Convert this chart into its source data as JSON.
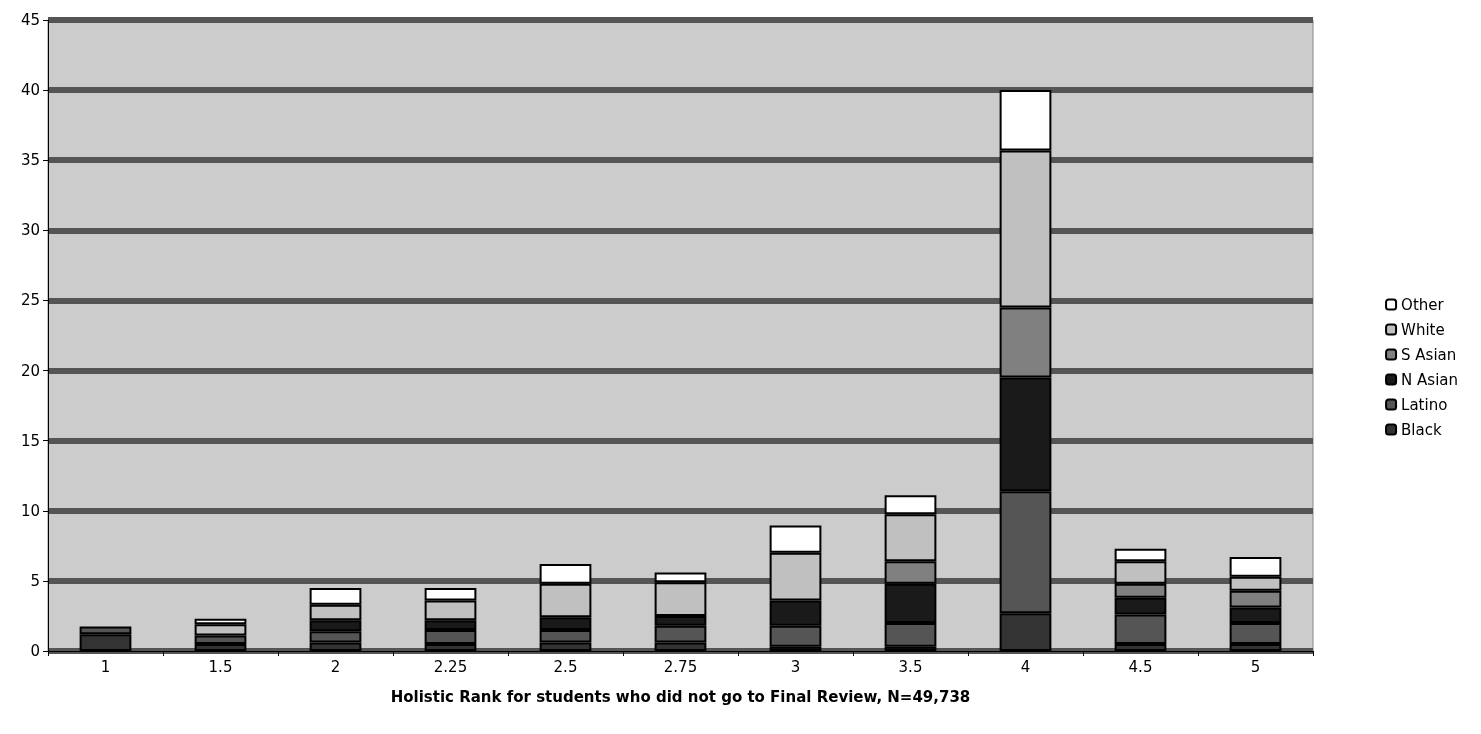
{
  "chart_data": {
    "type": "bar",
    "stacked": true,
    "xlabel": "Holistic Rank for students who did not go to Final Review, N=49,738",
    "categories": [
      "1",
      "1.5",
      "2",
      "2.25",
      "2.5",
      "2.75",
      "3",
      "3.5",
      "4",
      "4.5",
      "5"
    ],
    "series": [
      {
        "name": "Black",
        "color": "#333333",
        "values": [
          1.2,
          0.5,
          0.6,
          0.5,
          0.6,
          0.6,
          0.3,
          0.3,
          2.7,
          0.5,
          0.5
        ]
      },
      {
        "name": "Latino",
        "color": "#555555",
        "values": [
          0.55,
          0.6,
          0.8,
          1.0,
          0.9,
          1.2,
          1.5,
          1.7,
          8.7,
          2.1,
          1.5
        ]
      },
      {
        "name": "N Asian",
        "color": "#1a1a1a",
        "values": [
          null,
          null,
          0.8,
          0.7,
          0.9,
          0.7,
          1.8,
          2.8,
          8.1,
          1.2,
          1.1
        ]
      },
      {
        "name": "S Asian",
        "color": "#808080",
        "values": [
          null,
          null,
          null,
          null,
          null,
          null,
          null,
          1.6,
          5.0,
          1.0,
          1.2
        ]
      },
      {
        "name": "White",
        "color": "#c0c0c0",
        "values": [
          null,
          0.8,
          1.1,
          1.4,
          2.4,
          2.4,
          3.4,
          3.35,
          11.2,
          1.6,
          1.0
        ]
      },
      {
        "name": "Other",
        "color": "#ffffff",
        "values": [
          null,
          0.4,
          1.2,
          0.9,
          1.4,
          0.7,
          1.95,
          1.35,
          4.3,
          0.9,
          1.4
        ]
      }
    ],
    "ylim": [
      0,
      45
    ],
    "yticks": [
      0,
      5,
      10,
      15,
      20,
      25,
      30,
      35,
      40,
      45
    ],
    "grid": "y",
    "legend": "right"
  }
}
